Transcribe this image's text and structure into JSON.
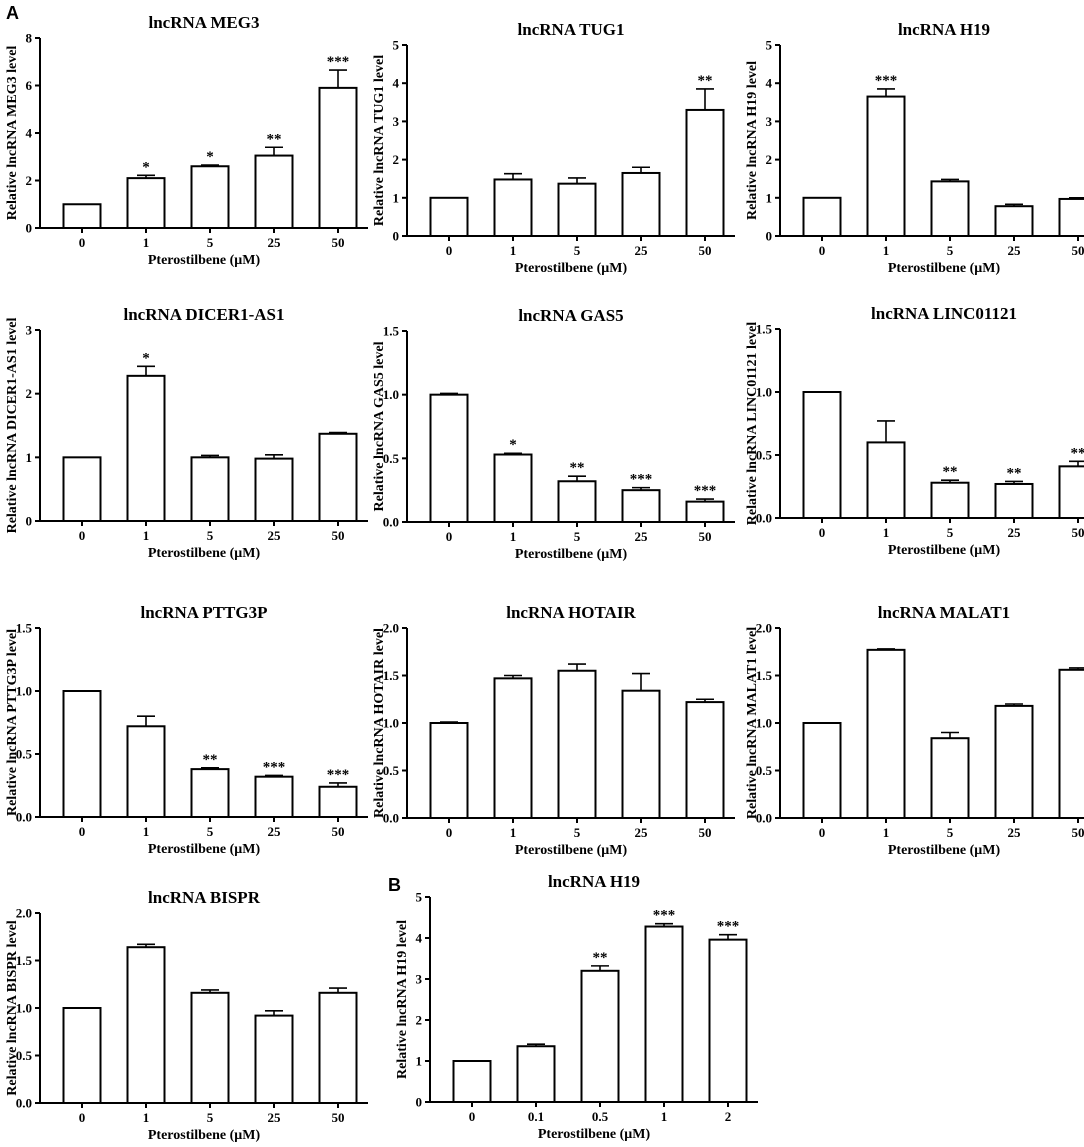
{
  "panel_labels": [
    "A",
    "B"
  ],
  "chart_data": [
    {
      "type": "bar",
      "panel": "A",
      "title": "lncRNA MEG3",
      "ylabel": "Relative lncRNA MEG3 level",
      "xlabel": "Pterostilbene (μM)",
      "categories": [
        "0",
        "1",
        "5",
        "25",
        "50"
      ],
      "values": [
        1.0,
        2.1,
        2.6,
        3.05,
        5.9
      ],
      "errors": [
        0,
        0.12,
        0.05,
        0.35,
        0.75
      ],
      "significance": [
        "",
        "*",
        "*",
        "**",
        "***"
      ],
      "ylim": [
        0,
        8
      ],
      "yticks": [
        "0",
        "2",
        "4",
        "6",
        "8"
      ]
    },
    {
      "type": "bar",
      "panel": "A",
      "title": "lncRNA TUG1",
      "ylabel": "Relative lncRNA TUG1 level",
      "xlabel": "Pterostilbene (μM)",
      "categories": [
        "0",
        "1",
        "5",
        "25",
        "50"
      ],
      "values": [
        1.0,
        1.48,
        1.37,
        1.65,
        3.3
      ],
      "errors": [
        0,
        0.15,
        0.15,
        0.15,
        0.55
      ],
      "significance": [
        "",
        "",
        "",
        "",
        "**"
      ],
      "ylim": [
        0,
        5
      ],
      "yticks": [
        "0",
        "1",
        "2",
        "3",
        "4",
        "5"
      ]
    },
    {
      "type": "bar",
      "panel": "A",
      "title": "lncRNA H19",
      "ylabel": "Relative lncRNA H19 level",
      "xlabel": "Pterostilbene (μM)",
      "categories": [
        "0",
        "1",
        "5",
        "25",
        "50"
      ],
      "values": [
        1.0,
        3.65,
        1.43,
        0.78,
        0.97
      ],
      "errors": [
        0,
        0.2,
        0.05,
        0.05,
        0.03
      ],
      "significance": [
        "",
        "***",
        "",
        "",
        ""
      ],
      "ylim": [
        0,
        5
      ],
      "yticks": [
        "0",
        "1",
        "2",
        "3",
        "4",
        "5"
      ]
    },
    {
      "type": "bar",
      "panel": "A",
      "title": "lncRNA DICER1-AS1",
      "ylabel": "Relative lncRNA DICER1-AS1 level",
      "xlabel": "Pterostilbene (μM)",
      "categories": [
        "0",
        "1",
        "5",
        "25",
        "50"
      ],
      "values": [
        1.0,
        2.28,
        1.0,
        0.98,
        1.37
      ],
      "errors": [
        0,
        0.15,
        0.03,
        0.06,
        0.02
      ],
      "significance": [
        "",
        "*",
        "",
        "",
        ""
      ],
      "ylim": [
        0,
        3
      ],
      "yticks": [
        "0",
        "1",
        "2",
        "3"
      ]
    },
    {
      "type": "bar",
      "panel": "A",
      "title": "lncRNA GAS5",
      "ylabel": "Relative lncRNA GAS5 level",
      "xlabel": "Pterostilbene (μM)",
      "categories": [
        "0",
        "1",
        "5",
        "25",
        "50"
      ],
      "values": [
        1.0,
        0.53,
        0.32,
        0.25,
        0.16
      ],
      "errors": [
        0.01,
        0.01,
        0.04,
        0.02,
        0.02
      ],
      "significance": [
        "",
        "*",
        "**",
        "***",
        "***"
      ],
      "ylim": [
        0,
        1.5
      ],
      "yticks": [
        "0.0",
        "0.5",
        "1.0",
        "1.5"
      ]
    },
    {
      "type": "bar",
      "panel": "A",
      "title": "lncRNA LINC01121",
      "ylabel": "Relative lncRNA LINC01121 level",
      "xlabel": "Pterostilbene (μM)",
      "categories": [
        "0",
        "1",
        "5",
        "25",
        "50"
      ],
      "values": [
        1.0,
        0.6,
        0.28,
        0.27,
        0.41
      ],
      "errors": [
        0,
        0.17,
        0.02,
        0.02,
        0.04
      ],
      "significance": [
        "",
        "",
        "**",
        "**",
        "**"
      ],
      "ylim": [
        0,
        1.5
      ],
      "yticks": [
        "0.0",
        "0.5",
        "1.0",
        "1.5"
      ]
    },
    {
      "type": "bar",
      "panel": "A",
      "title": "lncRNA PTTG3P",
      "ylabel": "Relative lncRNA PTTG3P level",
      "xlabel": "Pterostilbene (μM)",
      "categories": [
        "0",
        "1",
        "5",
        "25",
        "50"
      ],
      "values": [
        1.0,
        0.72,
        0.38,
        0.32,
        0.24
      ],
      "errors": [
        0,
        0.08,
        0.01,
        0.01,
        0.03
      ],
      "significance": [
        "",
        "",
        "**",
        "***",
        "***"
      ],
      "ylim": [
        0,
        1.5
      ],
      "yticks": [
        "0.0",
        "0.5",
        "1.0",
        "1.5"
      ]
    },
    {
      "type": "bar",
      "panel": "A",
      "title": "lncRNA HOTAIR",
      "ylabel": "Relative lncRNA HOTAIR level",
      "xlabel": "Pterostilbene (μM)",
      "categories": [
        "0",
        "1",
        "5",
        "25",
        "50"
      ],
      "values": [
        1.0,
        1.47,
        1.55,
        1.34,
        1.22
      ],
      "errors": [
        0.01,
        0.03,
        0.07,
        0.18,
        0.03
      ],
      "significance": [
        "",
        "",
        "",
        "",
        ""
      ],
      "ylim": [
        0,
        2
      ],
      "yticks": [
        "0.0",
        "0.5",
        "1.0",
        "1.5",
        "2.0"
      ]
    },
    {
      "type": "bar",
      "panel": "A",
      "title": "lncRNA MALAT1",
      "ylabel": "Relative lncRNA MALAT1 level",
      "xlabel": "Pterostilbene (μM)",
      "categories": [
        "0",
        "1",
        "5",
        "25",
        "50"
      ],
      "values": [
        1.0,
        1.77,
        0.84,
        1.18,
        1.56
      ],
      "errors": [
        0,
        0.01,
        0.06,
        0.02,
        0.02
      ],
      "significance": [
        "",
        "",
        "",
        "",
        ""
      ],
      "ylim": [
        0,
        2
      ],
      "yticks": [
        "0.0",
        "0.5",
        "1.0",
        "1.5",
        "2.0"
      ]
    },
    {
      "type": "bar",
      "panel": "A",
      "title": "lncRNA BISPR",
      "ylabel": "Relative lncRNA BISPR level",
      "xlabel": "Pterostilbene (μM)",
      "categories": [
        "0",
        "1",
        "5",
        "25",
        "50"
      ],
      "values": [
        1.0,
        1.64,
        1.16,
        0.92,
        1.16
      ],
      "errors": [
        0,
        0.03,
        0.03,
        0.05,
        0.05
      ],
      "significance": [
        "",
        "",
        "",
        "",
        ""
      ],
      "ylim": [
        0,
        2
      ],
      "yticks": [
        "0.0",
        "0.5",
        "1.0",
        "1.5",
        "2.0"
      ]
    },
    {
      "type": "bar",
      "panel": "B",
      "title": "lncRNA H19",
      "ylabel": "Relative lncRNA H19 level",
      "xlabel": "Pterostilbene (μM)",
      "categories": [
        "0",
        "0.1",
        "0.5",
        "1",
        "2"
      ],
      "values": [
        1.0,
        1.36,
        3.2,
        4.28,
        3.96
      ],
      "errors": [
        0,
        0.05,
        0.12,
        0.07,
        0.12
      ],
      "significance": [
        "",
        "",
        "**",
        "***",
        "***"
      ],
      "ylim": [
        0,
        5
      ],
      "yticks": [
        "0",
        "1",
        "2",
        "3",
        "4",
        "5"
      ]
    }
  ]
}
